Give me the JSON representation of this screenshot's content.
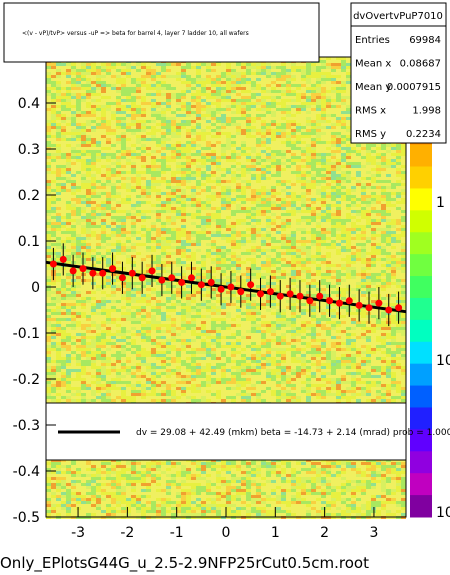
{
  "chart_data": {
    "type": "scatter",
    "title": "<(v - vP)/tvP> versus -uP => beta for barrel 4, layer 7 ladder 10, all wafers",
    "xlim": [
      -3.65,
      3.65
    ],
    "ylim": [
      -0.5,
      0.5
    ],
    "x_ticks": [
      "-3",
      "-2",
      "-1",
      "0",
      "1",
      "2",
      "3"
    ],
    "y_ticks": [
      "-0.5",
      "-0.4",
      "-0.3",
      "-0.2",
      "-0.1",
      "0",
      "0.1",
      "0.2",
      "0.3",
      "0.4"
    ],
    "z_ticks": [
      "1",
      "10",
      "10"
    ],
    "stats": {
      "name": "dvOvertvPuP7010",
      "rows": [
        {
          "label": "Entries",
          "value": "69984"
        },
        {
          "label": "Mean x",
          "value": "0.08687"
        },
        {
          "label": "Mean y",
          "value": "0.0007915"
        },
        {
          "label": "RMS x",
          "value": "1.998"
        },
        {
          "label": "RMS y",
          "value": "0.2234"
        }
      ]
    },
    "fit": {
      "text": "dv =   29.08 +  42.49 (mkm) beta =  -14.73 +   2.14 (mrad) prob = 1.000",
      "intercept": 0.0,
      "slope": -0.0147
    },
    "profile_series": {
      "name": "",
      "x": [
        -3.5,
        -3.3,
        -3.1,
        -2.9,
        -2.7,
        -2.5,
        -2.3,
        -2.1,
        -1.9,
        -1.7,
        -1.5,
        -1.3,
        -1.1,
        -0.9,
        -0.7,
        -0.5,
        -0.3,
        -0.1,
        0.1,
        0.3,
        0.5,
        0.7,
        0.9,
        1.1,
        1.3,
        1.5,
        1.7,
        1.9,
        2.1,
        2.3,
        2.5,
        2.7,
        2.9,
        3.1,
        3.3,
        3.5
      ],
      "y": [
        0.05,
        0.06,
        0.035,
        0.04,
        0.03,
        0.03,
        0.04,
        0.02,
        0.03,
        0.02,
        0.035,
        0.015,
        0.02,
        0.01,
        0.02,
        0.005,
        0.01,
        -0.005,
        0.0,
        -0.01,
        0.005,
        -0.015,
        -0.01,
        -0.02,
        -0.015,
        -0.02,
        -0.03,
        -0.02,
        -0.03,
        -0.035,
        -0.03,
        -0.04,
        -0.045,
        -0.035,
        -0.05,
        -0.045
      ]
    },
    "colors": {
      "profile_points": "#ff0000",
      "fit_line": "#000000",
      "frame": "#000000"
    }
  },
  "footer": "Only_EPlotsG44G_u_2.5-2.9NFP25rCut0.5cm.root"
}
